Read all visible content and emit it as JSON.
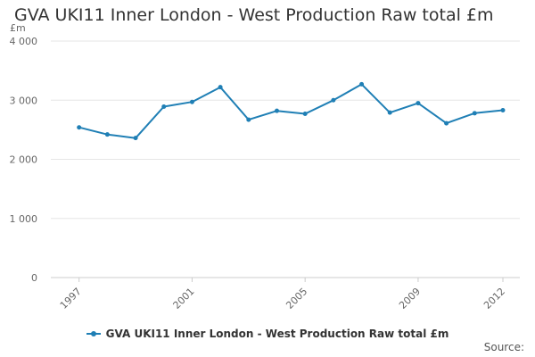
{
  "title": "GVA UKI11 Inner London - West Production Raw total £m",
  "source_label": "Source:",
  "colors": {
    "series": "#1f7fb5",
    "grid": "#e6e6e6",
    "axis": "#cccccc"
  },
  "chart_data": {
    "type": "line",
    "title": "GVA UKI11 Inner London - West Production Raw total £m",
    "ylabel": "£m",
    "xlabel": "",
    "ylim": [
      0,
      4000
    ],
    "y_ticks": [
      0,
      1000,
      2000,
      3000,
      4000
    ],
    "y_tick_labels": [
      "0",
      "1 000",
      "2 000",
      "3 000",
      "4 000"
    ],
    "x_tick_labels": [
      "1997",
      "2001",
      "2005",
      "2009",
      "2012"
    ],
    "grid": true,
    "legend_position": "bottom",
    "series": [
      {
        "name": "GVA UKI11 Inner London - West Production Raw total £m",
        "x": [
          1997,
          1998,
          1999,
          2000,
          2001,
          2002,
          2003,
          2004,
          2005,
          2006,
          2007,
          2008,
          2009,
          2010,
          2011,
          2012
        ],
        "values": [
          2540,
          2420,
          2360,
          2890,
          2970,
          3220,
          2670,
          2820,
          2770,
          3000,
          3270,
          2790,
          2950,
          2610,
          2780,
          2830
        ]
      }
    ]
  }
}
